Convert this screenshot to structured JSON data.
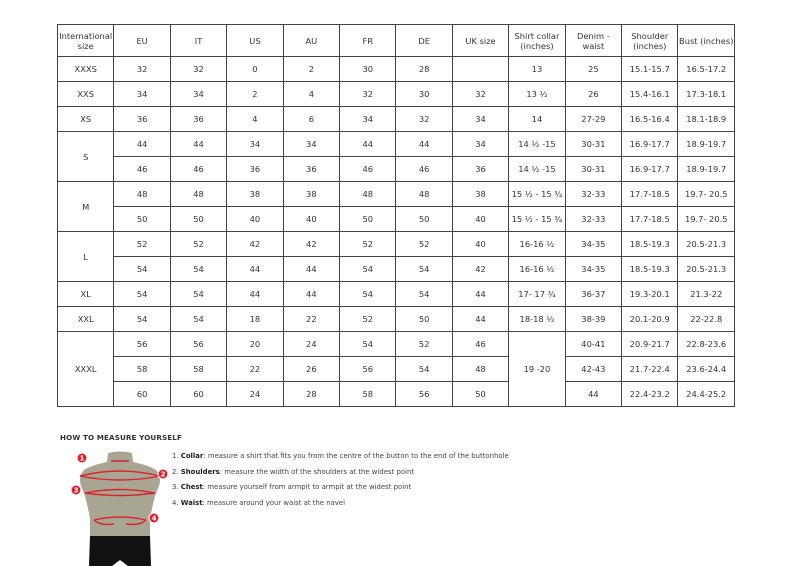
{
  "table": {
    "headers": [
      "International size",
      "EU",
      "IT",
      "US",
      "AU",
      "FR",
      "DE",
      "UK size",
      "Shirt collar (inches)",
      "Denim - waist",
      "Shoulder (inches)",
      "Bust (inches)"
    ],
    "groups": [
      {
        "size": "XXXS",
        "rows": [
          [
            "32",
            "32",
            "0",
            "2",
            "30",
            "28",
            "",
            "13",
            "25",
            "15.1-15.7",
            "16.5-17.2"
          ]
        ]
      },
      {
        "size": "XXS",
        "rows": [
          [
            "34",
            "34",
            "2",
            "4",
            "32",
            "30",
            "32",
            "13 ½",
            "26",
            "15.4-16.1",
            "17.3-18.1"
          ]
        ]
      },
      {
        "size": "XS",
        "rows": [
          [
            "36",
            "36",
            "4",
            "6",
            "34",
            "32",
            "34",
            "14",
            "27-29",
            "16.5-16.4",
            "18.1-18.9"
          ]
        ]
      },
      {
        "size": "S",
        "rows": [
          [
            "44",
            "44",
            "34",
            "34",
            "44",
            "44",
            "34",
            "14 ½ -15",
            "30-31",
            "16.9-17.7",
            "18.9-19.7"
          ],
          [
            "46",
            "46",
            "36",
            "36",
            "46",
            "46",
            "36",
            "14 ½ -15",
            "30-31",
            "16.9-17.7",
            "18.9-19.7"
          ]
        ]
      },
      {
        "size": "M",
        "rows": [
          [
            "48",
            "48",
            "38",
            "38",
            "48",
            "48",
            "38",
            "15 ½ - 15 ¾",
            "32-33",
            "17.7-18.5",
            "19.7- 20.5"
          ],
          [
            "50",
            "50",
            "40",
            "40",
            "50",
            "50",
            "40",
            "15 ½ - 15 ¾",
            "32-33",
            "17.7-18.5",
            "19.7- 20.5"
          ]
        ]
      },
      {
        "size": "L",
        "rows": [
          [
            "52",
            "52",
            "42",
            "42",
            "52",
            "52",
            "40",
            "16-16 ½",
            "34-35",
            "18.5-19.3",
            "20.5-21.3"
          ],
          [
            "54",
            "54",
            "44",
            "44",
            "54",
            "54",
            "42",
            "16-16 ½",
            "34-35",
            "18.5-19.3",
            "20.5-21.3"
          ]
        ]
      },
      {
        "size": "XL",
        "rows": [
          [
            "54",
            "54",
            "44",
            "44",
            "54",
            "54",
            "44",
            "17- 17 ¾",
            "36-37",
            "19.3-20.1",
            "21.3-22"
          ]
        ]
      },
      {
        "size": "XXL",
        "rows": [
          [
            "54",
            "54",
            "18",
            "22",
            "52",
            "50",
            "44",
            "18-18 ½",
            "38-39",
            "20.1-20.9",
            "22-22.8"
          ]
        ]
      },
      {
        "size": "XXXL",
        "rows": [
          [
            "56",
            "56",
            "20",
            "24",
            "54",
            "52",
            "46",
            "19 -20",
            "40-41",
            "20.9-21.7",
            "22.8-23.6"
          ],
          [
            "58",
            "58",
            "22",
            "26",
            "56",
            "54",
            "48",
            null,
            "42-43",
            "21.7-22.4",
            "23.6-24.4"
          ],
          [
            "60",
            "60",
            "24",
            "28",
            "58",
            "56",
            "50",
            null,
            "44",
            "22.4-23.2",
            "24.4-25.2"
          ]
        ]
      }
    ]
  },
  "measure": {
    "title": "HOW TO MEASURE YOURSELF",
    "markers": [
      "1",
      "2",
      "3",
      "4"
    ],
    "steps": [
      {
        "num": "1.",
        "term": "Collar",
        "text": ": measure a shirt that fits you from the centre of the button to the end of the buttonhole"
      },
      {
        "num": "2.",
        "term": "Shoulders",
        "text": ": measure the width of the shoulders at the widest point"
      },
      {
        "num": "3.",
        "term": "Chest",
        "text": ": measure yourself from armpit to armpit at the widest point"
      },
      {
        "num": "4.",
        "term": "Waist",
        "text": ": measure around your waist at the navel"
      }
    ],
    "colors": {
      "marker": "#d8232f",
      "torso": "#a8a692",
      "shorts": "#111111"
    }
  }
}
